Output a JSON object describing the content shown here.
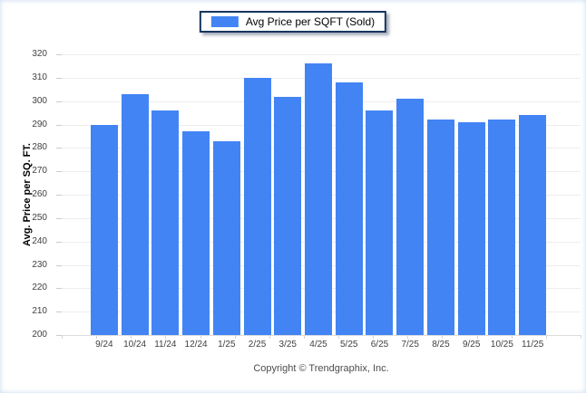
{
  "legend": {
    "label": "Avg Price per SQFT (Sold)"
  },
  "footer": {
    "copyright": "Copyright © Trendgraphix, Inc."
  },
  "colors": {
    "bar": "#4284f4",
    "legend_border": "#16365d",
    "gridline": "#ededed"
  },
  "chart_data": {
    "type": "bar",
    "title": "",
    "xlabel": "",
    "ylabel": "Avg. Price per SQ. FT.",
    "categories": [
      "9/24",
      "10/24",
      "11/24",
      "12/24",
      "1/25",
      "2/25",
      "3/25",
      "4/25",
      "5/25",
      "6/25",
      "7/25",
      "8/25",
      "9/25",
      "10/25",
      "11/25"
    ],
    "values": [
      290,
      303,
      296,
      287,
      283,
      310,
      302,
      316,
      308,
      296,
      301,
      292,
      291,
      292,
      294
    ],
    "series_name": "Avg Price per SQFT (Sold)",
    "ylim": [
      200,
      320
    ],
    "ytick_step": 10,
    "grid": "horizontal",
    "legend_position": "top-center",
    "bar_color": "#4284f4"
  }
}
